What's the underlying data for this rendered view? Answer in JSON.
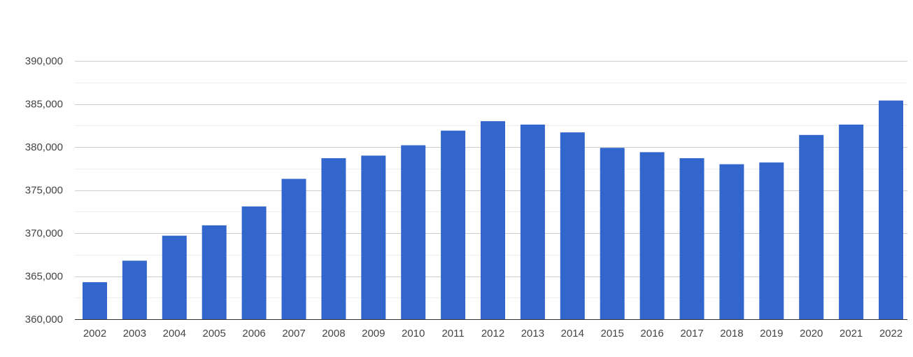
{
  "chart_data": {
    "type": "bar",
    "title": "",
    "xlabel": "",
    "ylabel": "",
    "ylim": [
      360000,
      390000
    ],
    "yticks": [
      360000,
      365000,
      370000,
      375000,
      380000,
      385000,
      390000
    ],
    "ytick_labels": [
      "360,000",
      "365,000",
      "370,000",
      "375,000",
      "380,000",
      "385,000",
      "390,000"
    ],
    "categories": [
      "2002",
      "2003",
      "2004",
      "2005",
      "2006",
      "2007",
      "2008",
      "2009",
      "2010",
      "2011",
      "2012",
      "2013",
      "2014",
      "2015",
      "2016",
      "2017",
      "2018",
      "2019",
      "2020",
      "2021",
      "2022"
    ],
    "values": [
      364300,
      366800,
      369700,
      370900,
      373100,
      376300,
      378700,
      379000,
      380200,
      381900,
      383000,
      382600,
      381700,
      379900,
      379400,
      378700,
      378000,
      378200,
      381400,
      382600,
      385400
    ],
    "bar_color": "#3366cc",
    "grid_color": "#cccccc",
    "minor_grid_color": "#ebebeb",
    "grid": true,
    "legend": "none"
  }
}
